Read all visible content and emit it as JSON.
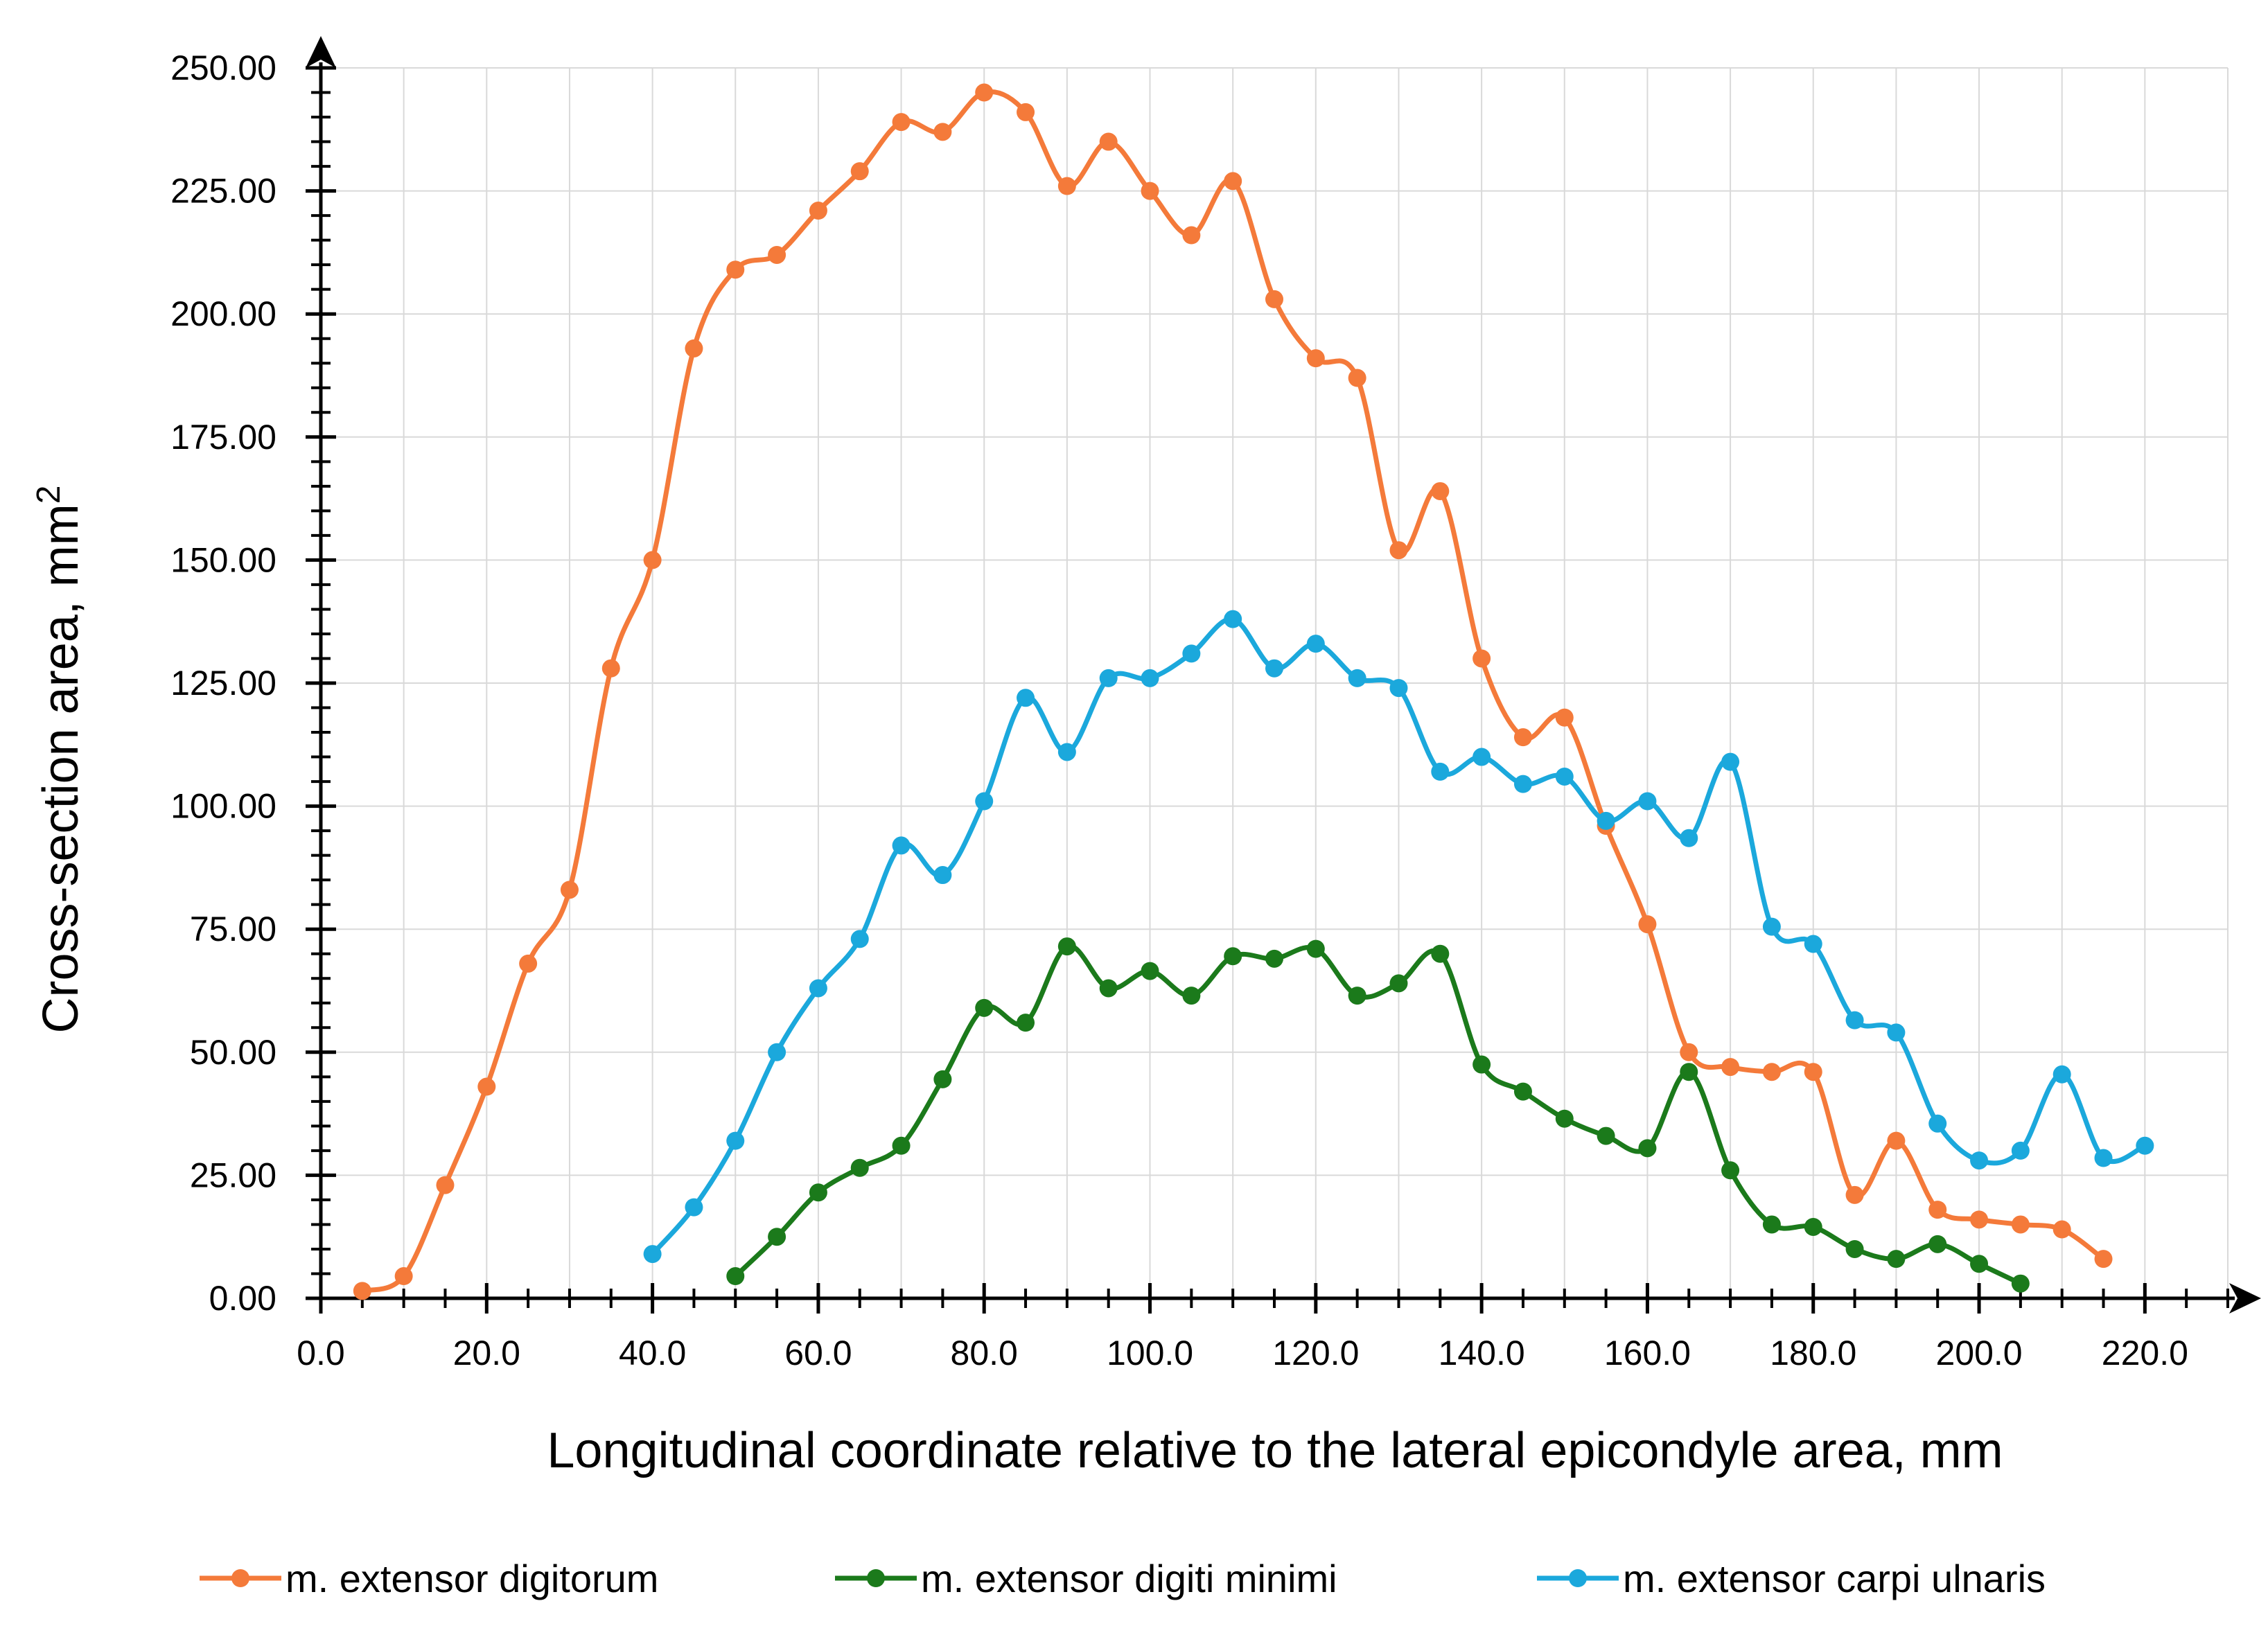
{
  "chart_data": {
    "type": "line",
    "title": "",
    "xlabel": "Longitudinal coordinate relative to the lateral epicondyle area, mm",
    "ylabel": "Cross-section area, mm",
    "ylabel_superscript": "2",
    "xlim": [
      0,
      230
    ],
    "ylim": [
      0,
      250
    ],
    "x_ticks": [
      "0.0",
      "20.0",
      "40.0",
      "60.0",
      "80.0",
      "100.0",
      "120.0",
      "140.0",
      "160.0",
      "180.0",
      "200.0",
      "220.0"
    ],
    "y_ticks": [
      "0.00",
      "25.00",
      "50.00",
      "75.00",
      "100.00",
      "125.00",
      "150.00",
      "175.00",
      "200.00",
      "225.00",
      "250.00"
    ],
    "x_tick_values": [
      0,
      20,
      40,
      60,
      80,
      100,
      120,
      140,
      160,
      180,
      200,
      220
    ],
    "y_tick_values": [
      0,
      25,
      50,
      75,
      100,
      125,
      150,
      175,
      200,
      225,
      250
    ],
    "grid": true,
    "legend_position": "bottom",
    "smooth": true,
    "series": [
      {
        "name": "m. extensor digitorum",
        "color": "#F47A3A",
        "x": [
          5,
          10,
          15,
          20,
          25,
          30,
          35,
          40,
          45,
          50,
          55,
          60,
          65,
          70,
          75,
          80,
          85,
          90,
          95,
          100,
          105,
          110,
          115,
          120,
          125,
          130,
          135,
          140,
          145,
          150,
          155,
          160,
          165,
          170,
          175,
          180,
          185,
          190,
          195,
          200,
          205,
          210,
          215
        ],
        "y": [
          1.5,
          4.5,
          23,
          43,
          68,
          83,
          128,
          150,
          193,
          209,
          212,
          221,
          229,
          239,
          237,
          245,
          241,
          226,
          235,
          225,
          216,
          227,
          203,
          191,
          187,
          152,
          164,
          130,
          114,
          118,
          96,
          76,
          50,
          47,
          46,
          46,
          21,
          32,
          18,
          16,
          15,
          14,
          8
        ]
      },
      {
        "name": "m. extensor digiti minimi",
        "color": "#1B7A1B",
        "x": [
          50,
          55,
          60,
          65,
          70,
          75,
          80,
          85,
          90,
          95,
          100,
          105,
          110,
          115,
          120,
          125,
          130,
          135,
          140,
          145,
          150,
          155,
          160,
          165,
          170,
          175,
          180,
          185,
          190,
          195,
          200,
          205
        ],
        "y": [
          4.5,
          12.5,
          21.5,
          26.5,
          31,
          44.5,
          59,
          56,
          71.5,
          63,
          66.5,
          61.5,
          69.5,
          69,
          71,
          61.5,
          64,
          70,
          47.5,
          42,
          36.5,
          33,
          30.5,
          46,
          26,
          15,
          14.5,
          10,
          8,
          11,
          7,
          3
        ]
      },
      {
        "name": "m. extensor carpi ulnaris",
        "color": "#1BA8DC",
        "x": [
          40,
          45,
          50,
          55,
          60,
          65,
          70,
          75,
          80,
          85,
          90,
          95,
          100,
          105,
          110,
          115,
          120,
          125,
          130,
          135,
          140,
          145,
          150,
          155,
          160,
          165,
          170,
          175,
          180,
          185,
          190,
          195,
          200,
          205,
          210,
          215,
          220
        ],
        "y": [
          9,
          18.5,
          32,
          50,
          63,
          73,
          92,
          86,
          101,
          122,
          111,
          126,
          126,
          131,
          138,
          128,
          133,
          126,
          124,
          107,
          110,
          104.5,
          106,
          97,
          101,
          93.5,
          109,
          75.5,
          72,
          56.5,
          54,
          35.5,
          28,
          30,
          45.5,
          28.5,
          31
        ]
      }
    ]
  }
}
